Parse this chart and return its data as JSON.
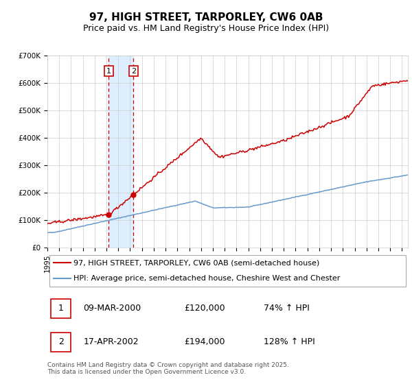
{
  "title": "97, HIGH STREET, TARPORLEY, CW6 0AB",
  "subtitle": "Price paid vs. HM Land Registry's House Price Index (HPI)",
  "ylim": [
    0,
    700000
  ],
  "yticks": [
    0,
    100000,
    200000,
    300000,
    400000,
    500000,
    600000,
    700000
  ],
  "ytick_labels": [
    "£0",
    "£100K",
    "£200K",
    "£300K",
    "£400K",
    "£500K",
    "£600K",
    "£700K"
  ],
  "sale1_year": 2000.19,
  "sale1_price": 120000,
  "sale1_label": "09-MAR-2000",
  "sale1_hpi": "74% ↑ HPI",
  "sale2_year": 2002.29,
  "sale2_price": 194000,
  "sale2_label": "17-APR-2002",
  "sale2_hpi": "128% ↑ HPI",
  "legend_label_red": "97, HIGH STREET, TARPORLEY, CW6 0AB (semi-detached house)",
  "legend_label_blue": "HPI: Average price, semi-detached house, Cheshire West and Chester",
  "footer": "Contains HM Land Registry data © Crown copyright and database right 2025.\nThis data is licensed under the Open Government Licence v3.0.",
  "red_color": "#cc0000",
  "blue_color": "#6699cc",
  "highlight_fill": "#ddeeff",
  "background_color": "#ffffff",
  "grid_color": "#cccccc",
  "title_fontsize": 11,
  "subtitle_fontsize": 9,
  "tick_fontsize": 7.5,
  "legend_fontsize": 8,
  "footer_fontsize": 6.5
}
